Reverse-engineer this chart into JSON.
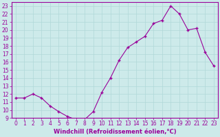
{
  "x": [
    0,
    1,
    2,
    3,
    4,
    5,
    6,
    7,
    8,
    9,
    10,
    11,
    12,
    13,
    14,
    15,
    16,
    17,
    18,
    19,
    20,
    21,
    22,
    23
  ],
  "y": [
    11.5,
    11.5,
    12.0,
    11.5,
    10.5,
    9.8,
    9.2,
    8.8,
    8.8,
    9.8,
    12.2,
    14.0,
    16.2,
    17.8,
    18.5,
    19.2,
    20.8,
    21.2,
    23.0,
    22.0,
    20.0,
    20.2,
    17.2,
    15.5
  ],
  "line_color": "#990099",
  "marker": "+",
  "marker_size": 3,
  "marker_lw": 1.0,
  "linewidth": 0.8,
  "xlabel": "Windchill (Refroidissement éolien,°C)",
  "xlim": [
    -0.5,
    23.5
  ],
  "ylim": [
    9,
    23.5
  ],
  "yticks": [
    9,
    10,
    11,
    12,
    13,
    14,
    15,
    16,
    17,
    18,
    19,
    20,
    21,
    22,
    23
  ],
  "xticks": [
    0,
    1,
    2,
    3,
    4,
    5,
    6,
    7,
    8,
    9,
    10,
    11,
    12,
    13,
    14,
    15,
    16,
    17,
    18,
    19,
    20,
    21,
    22,
    23
  ],
  "bg_color": "#cdeaea",
  "grid_color": "#b0d8d8",
  "spine_color": "#990099",
  "tick_color": "#990099",
  "label_color": "#990099",
  "font_size": 5.5,
  "xlabel_fontsize": 6.0,
  "xlabel_fontweight": "bold"
}
